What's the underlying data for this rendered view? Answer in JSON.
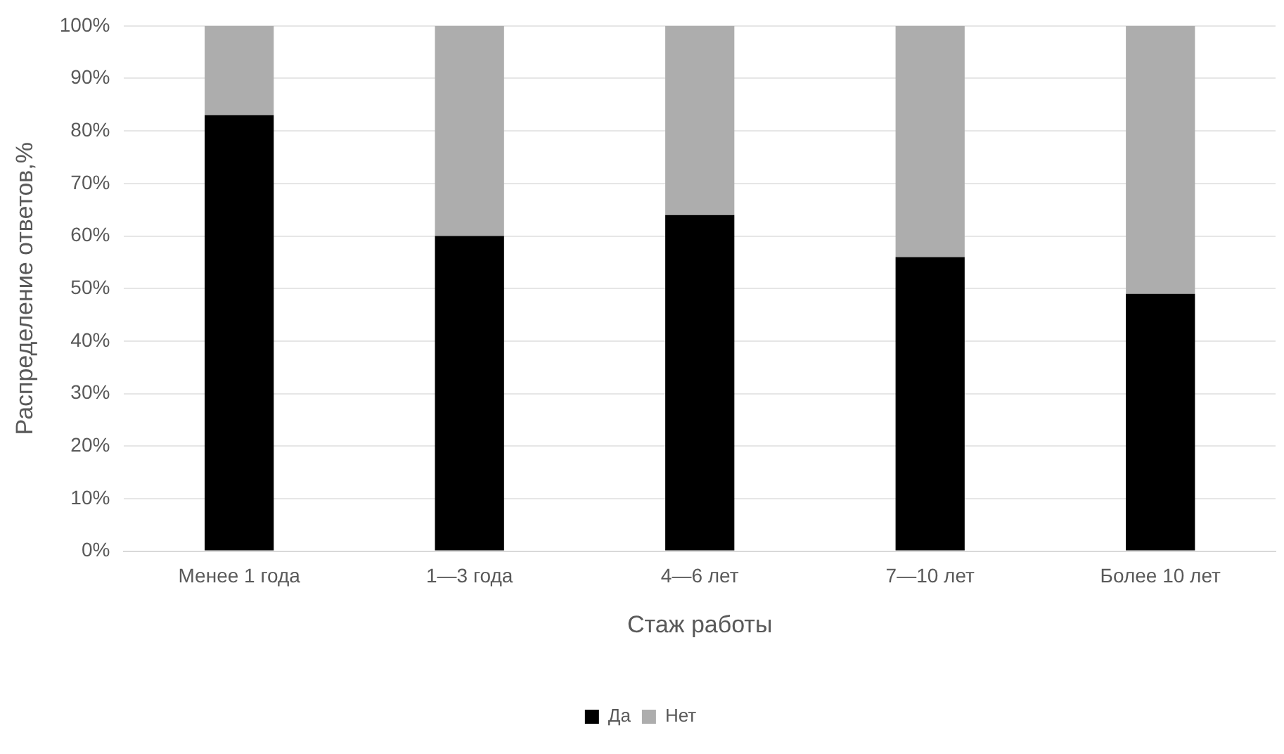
{
  "chart_data": {
    "type": "bar",
    "stacked": true,
    "xlabel": "Стаж работы",
    "ylabel": "Распределение ответов,%",
    "categories": [
      "Менее 1 года",
      "1—3 года",
      "4—6 лет",
      "7—10 лет",
      "Более 10 лет"
    ],
    "series": [
      {
        "name": "Да",
        "color": "#000000",
        "values": [
          83,
          60,
          64,
          56,
          49
        ]
      },
      {
        "name": "Нет",
        "color": "#adadad",
        "values": [
          17,
          40,
          36,
          44,
          51
        ]
      }
    ],
    "ylim": [
      0,
      100
    ],
    "yticks": [
      {
        "value": 0,
        "label": "0%"
      },
      {
        "value": 10,
        "label": "10%"
      },
      {
        "value": 20,
        "label": "20%"
      },
      {
        "value": 30,
        "label": "30%"
      },
      {
        "value": 40,
        "label": "40%"
      },
      {
        "value": 50,
        "label": "50%"
      },
      {
        "value": 60,
        "label": "60%"
      },
      {
        "value": 70,
        "label": "70%"
      },
      {
        "value": 80,
        "label": "80%"
      },
      {
        "value": 90,
        "label": "90%"
      },
      {
        "value": 100,
        "label": "100%"
      }
    ],
    "grid": "y",
    "legend": "bottom"
  }
}
